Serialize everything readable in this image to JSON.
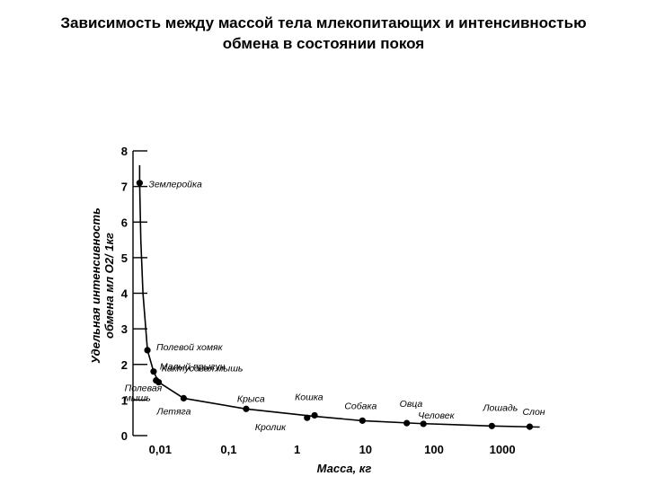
{
  "chart_data": {
    "type": "scatter",
    "title_line1": "Зависимость между массой тела млекопитающих и интенсивностью",
    "title_line2": "обмена в состоянии покоя",
    "xlabel": "Масса, кг",
    "ylabel_line1": "Удельная интенсивность",
    "ylabel_line2": "обмена мл O2/ 1кг",
    "x_scale": "log",
    "y_ticks": [
      "0",
      "1",
      "2",
      "3",
      "4",
      "5",
      "6",
      "7",
      "8"
    ],
    "y_tick_values": [
      0,
      1,
      2,
      3,
      4,
      5,
      6,
      7,
      8
    ],
    "x_ticks": [
      "0,01",
      "0,1",
      "1",
      "10",
      "100",
      "1000"
    ],
    "x_tick_values": [
      0.01,
      0.1,
      1,
      10,
      100,
      1000
    ],
    "xlim": [
      0.004,
      4000
    ],
    "ylim": [
      0,
      8
    ],
    "grid": false,
    "points": [
      {
        "label": "Землеройка",
        "x": 0.005,
        "y": 7.1
      },
      {
        "label": "Полевой хомяк",
        "x": 0.0065,
        "y": 2.4
      },
      {
        "label": "Малый прыгун",
        "x": 0.008,
        "y": 1.8
      },
      {
        "label": "Кактусовая мышь",
        "x": 0.0087,
        "y": 1.55
      },
      {
        "label": "Полевая мышь",
        "x": 0.0095,
        "y": 1.5
      },
      {
        "label": "Летяга",
        "x": 0.022,
        "y": 1.05
      },
      {
        "label": "Крыса",
        "x": 0.18,
        "y": 0.75
      },
      {
        "label": "Кролик",
        "x": 1.4,
        "y": 0.5
      },
      {
        "label": "Кошка",
        "x": 1.8,
        "y": 0.57
      },
      {
        "label": "Собака",
        "x": 9,
        "y": 0.42
      },
      {
        "label": "Овца",
        "x": 40,
        "y": 0.35
      },
      {
        "label": "Человек",
        "x": 70,
        "y": 0.33
      },
      {
        "label": "Лошадь",
        "x": 700,
        "y": 0.27
      },
      {
        "label": "Слон",
        "x": 2500,
        "y": 0.25
      }
    ]
  }
}
